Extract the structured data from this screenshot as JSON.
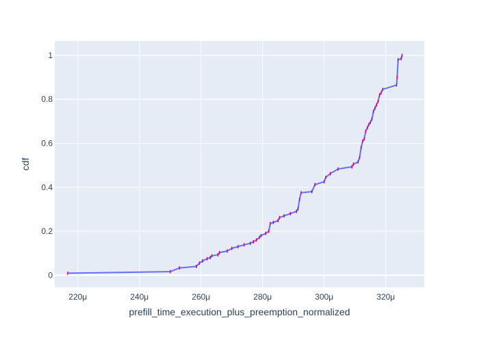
{
  "chart_data": {
    "type": "line",
    "title": "",
    "xlabel": "prefill_time_execution_plus_preemption_normalized",
    "ylabel": "cdf",
    "x_ticks": [
      {
        "value": 0.00022,
        "label": "220μ"
      },
      {
        "value": 0.00024,
        "label": "240μ"
      },
      {
        "value": 0.00026,
        "label": "260μ"
      },
      {
        "value": 0.00028,
        "label": "280μ"
      },
      {
        "value": 0.0003,
        "label": "300μ"
      },
      {
        "value": 0.00032,
        "label": "320μ"
      }
    ],
    "y_ticks": [
      {
        "value": 0,
        "label": "0"
      },
      {
        "value": 0.2,
        "label": "0.2"
      },
      {
        "value": 0.4,
        "label": "0.4"
      },
      {
        "value": 0.6,
        "label": "0.6"
      },
      {
        "value": 0.8,
        "label": "0.8"
      },
      {
        "value": 1,
        "label": "1"
      }
    ],
    "xlim": [
      0.0002125,
      0.0003325
    ],
    "ylim": [
      -0.055,
      1.065
    ],
    "grid": true,
    "colors": {
      "background": "#e5ecf6",
      "grid": "#ffffff",
      "line": "#636efa",
      "markers": "#d6006f"
    },
    "series": [
      {
        "x": [
          0.0002167,
          0.00025,
          0.000253,
          0.0002585,
          0.0002595,
          0.0002605,
          0.000262,
          0.000263,
          0.0002635,
          0.0002655,
          0.000266,
          0.0002685,
          0.00027,
          0.000272,
          0.000274,
          0.000276,
          0.000277,
          0.000278,
          0.000279,
          0.0002795,
          0.000281,
          0.000282,
          0.0002825,
          0.0002835,
          0.000285,
          0.0002855,
          0.000287,
          0.000289,
          0.000291,
          0.0002915,
          0.000292,
          0.0002925,
          0.000296,
          0.000297,
          0.0003,
          0.0003005,
          0.000302,
          0.0003045,
          0.000309,
          0.0003095,
          0.000311,
          0.0003115,
          0.000312,
          0.0003125,
          0.000313,
          0.0003135,
          0.000314,
          0.0003145,
          0.000315,
          0.0003155,
          0.000316,
          0.0003165,
          0.000317,
          0.0003175,
          0.000318,
          0.0003185,
          0.000319,
          0.0003235,
          0.0003237,
          0.000324,
          0.000325,
          0.0003253
        ],
        "y": [
          0.009,
          0.016,
          0.033,
          0.04,
          0.055,
          0.065,
          0.075,
          0.08,
          0.088,
          0.093,
          0.103,
          0.11,
          0.122,
          0.13,
          0.138,
          0.145,
          0.152,
          0.16,
          0.172,
          0.18,
          0.19,
          0.2,
          0.235,
          0.24,
          0.248,
          0.262,
          0.27,
          0.28,
          0.29,
          0.302,
          0.345,
          0.375,
          0.38,
          0.412,
          0.425,
          0.445,
          0.462,
          0.483,
          0.493,
          0.505,
          0.515,
          0.535,
          0.58,
          0.61,
          0.62,
          0.655,
          0.67,
          0.685,
          0.695,
          0.71,
          0.745,
          0.76,
          0.775,
          0.79,
          0.82,
          0.83,
          0.845,
          0.865,
          0.9,
          0.98,
          0.985,
          1.0
        ]
      }
    ]
  }
}
